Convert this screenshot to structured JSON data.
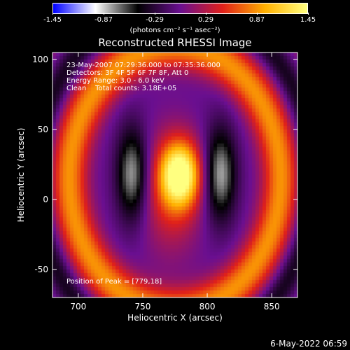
{
  "colorbar": {
    "ticks": [
      "-1.45",
      "-0.87",
      "-0.29",
      "0.29",
      "0.87",
      "1.45"
    ],
    "units": "(photons cm⁻² s⁻¹ asec⁻²)",
    "colormap": [
      "#0000ff",
      "#ffffff",
      "#000000",
      "#6a0f90",
      "#e0201a",
      "#ffb000",
      "#ffff80"
    ]
  },
  "chart_data": {
    "type": "heatmap",
    "title": "Reconstructed RHESSI Image",
    "xlabel": "Heliocentric X (arcsec)",
    "ylabel": "Heliocentric Y (arcsec)",
    "xlim": [
      680,
      870
    ],
    "ylim": [
      -70,
      105
    ],
    "x_ticks": [
      700,
      750,
      800,
      850
    ],
    "y_ticks": [
      -50,
      0,
      50,
      100
    ],
    "peak": {
      "x": 779,
      "y": 18
    },
    "value_range": [
      -1.45,
      1.45
    ]
  },
  "info": {
    "time_range": "23-May-2007 07:29:36.000 to 07:35:36.000",
    "detectors": "Detectors: 3F 4F 5F 6F 7F 8F, Att 0",
    "energy": "Energy Range: 3.0 - 6.0 keV",
    "clean": "Clean    Total counts: 3.18E+05",
    "peak_text": "Position of Peak = [779,18]"
  },
  "footer": {
    "date": "6-May-2022 06:59"
  }
}
